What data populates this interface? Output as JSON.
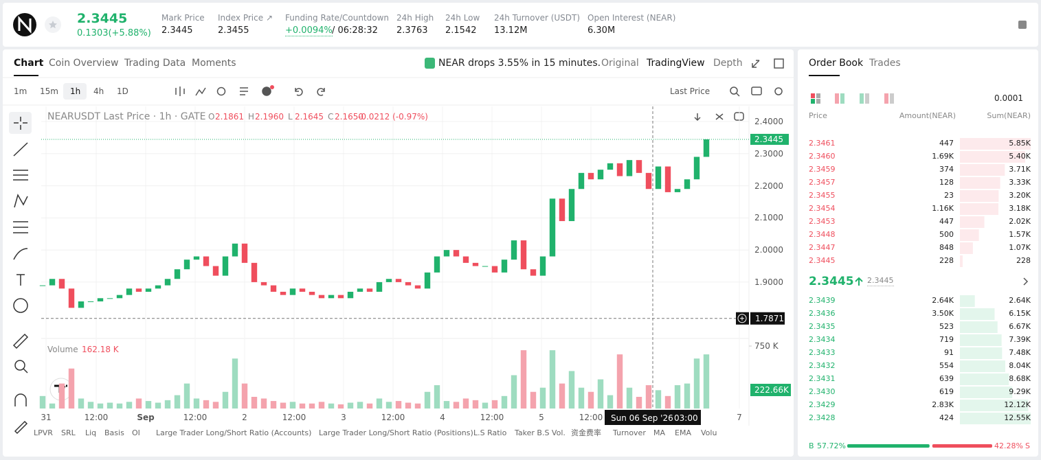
{
  "header": {
    "price": "2.3445",
    "change": "0.1303(+5.88%)",
    "stats": [
      {
        "label": "Mark Price",
        "value": "2.3445"
      },
      {
        "label": "Index Price ↗",
        "value": "2.3455"
      },
      {
        "label": "Funding Rate/Countdown",
        "value": "+0.0094%",
        "extra": "/ 06:28:32"
      },
      {
        "label": "24h High",
        "value": "2.3763"
      },
      {
        "label": "24h Low",
        "value": "2.1542"
      },
      {
        "label": "24h Turnover (USDT)",
        "value": "13.12M"
      },
      {
        "label": "Open Interest (NEAR)",
        "value": "6.30M"
      }
    ]
  },
  "tabs": [
    "Chart",
    "Coin Overview",
    "Trading Data",
    "Moments"
  ],
  "news": "NEAR drops 3.55% in 15 minutes.",
  "view_tabs": [
    "Original",
    "TradingView",
    "Depth"
  ],
  "intervals": [
    "1m",
    "15m",
    "1h",
    "4h",
    "1D"
  ],
  "price_type": "Last Price",
  "legend": {
    "title": "NEARUSDT Last Price · 1h · GATE",
    "ohlc": [
      {
        "key": "O",
        "value": "2.1861"
      },
      {
        "key": "H",
        "value": "2.1960"
      },
      {
        "key": "L",
        "value": "2.1645"
      },
      {
        "key": "C",
        "value": "2.1650"
      }
    ],
    "change": "-0.0212 (-0.97%)"
  },
  "chart_data": {
    "type": "candlestick",
    "values": [
      1.89,
      1.91,
      1.88,
      1.82,
      1.84,
      1.84,
      1.85,
      1.85,
      1.86,
      1.88,
      1.87,
      1.88,
      1.89,
      1.91,
      1.94,
      1.97,
      1.98,
      1.95,
      1.92,
      1.98,
      2.02,
      1.96,
      1.9,
      1.89,
      1.87,
      1.86,
      1.88,
      1.87,
      1.86,
      1.85,
      1.86,
      1.85,
      1.87,
      1.88,
      1.87,
      1.9,
      1.91,
      1.9,
      1.89,
      1.88,
      1.93,
      1.98,
      2.0,
      1.98,
      1.96,
      1.95,
      1.95,
      1.93,
      1.97,
      2.03,
      1.94,
      1.92,
      1.98,
      2.16,
      2.09,
      2.19,
      2.24,
      2.22,
      2.25,
      2.27,
      2.23,
      2.28,
      2.24,
      2.19,
      2.26,
      2.18,
      2.19,
      2.22,
      2.29,
      2.3445
    ],
    "up_color": "#20b26c",
    "down_color": "#ef4e5d",
    "ylim": [
      1.731,
      2.447
    ],
    "yticks": [
      {
        "value": 2.4,
        "label": "2.4000"
      },
      {
        "value": 2.3,
        "label": "2.3000"
      },
      {
        "value": 2.2,
        "label": "2.2000"
      },
      {
        "value": 2.1,
        "label": "2.1000"
      },
      {
        "value": 2.0,
        "label": "2.0000"
      },
      {
        "value": 1.9,
        "label": "1.9000"
      }
    ],
    "last_price": {
      "value": 2.3445,
      "label": "2.3445"
    },
    "crosshair_price": {
      "value": 1.7871,
      "label": "1.7871"
    },
    "x_labels": [
      "31",
      "12:00",
      "Sep",
      "12:00",
      "2",
      "12:00",
      "3",
      "12:00",
      "4",
      "12:00",
      "5",
      "12:00",
      "7"
    ],
    "crosshair_time": [
      "Sun 06 Sep '26",
      "03:00"
    ],
    "grid": true,
    "volume": {
      "name": "Volume",
      "current_label": "162.18 K",
      "values": [
        150,
        60,
        300,
        480,
        120,
        80,
        60,
        70,
        60,
        80,
        120,
        90,
        70,
        100,
        160,
        300,
        120,
        100,
        80,
        200,
        600,
        300,
        140,
        120,
        90,
        70,
        80,
        60,
        60,
        80,
        60,
        50,
        70,
        80,
        60,
        120,
        80,
        90,
        70,
        60,
        200,
        280,
        90,
        80,
        120,
        100,
        70,
        100,
        150,
        400,
        700,
        200,
        250,
        700,
        300,
        450,
        250,
        200,
        350,
        160,
        650,
        250,
        140,
        280,
        220,
        150,
        280,
        300,
        600,
        650
      ],
      "up_color": "#9edcc0",
      "down_color": "#f4a3ad",
      "ylim": [
        0,
        808
      ],
      "yticks": [
        {
          "value": 750,
          "label": "750 K"
        }
      ],
      "last": {
        "value": 222.66,
        "label": "222.66K"
      }
    }
  },
  "indicators": [
    "LPVR",
    "SRL",
    "Liq",
    "Basis",
    "OI",
    "Large Trader Long/Short Ratio (Accounts)",
    "Large Trader Long/Short Ratio (Positions)",
    "L.S Ratio",
    "Taker B.S Vol.",
    "资金费率",
    "Turnover",
    "MA",
    "EMA",
    "Volu"
  ],
  "order_book": {
    "tabs": [
      "Order Book",
      "Trades"
    ],
    "precision": "0.0001",
    "columns": [
      "Price",
      "Amount(NEAR)",
      "Sum(NEAR)"
    ],
    "asks": [
      [
        "2.3461",
        "447",
        "5.85K"
      ],
      [
        "2.3460",
        "1.69K",
        "5.40K"
      ],
      [
        "2.3459",
        "374",
        "3.71K"
      ],
      [
        "2.3457",
        "128",
        "3.33K"
      ],
      [
        "2.3455",
        "23",
        "3.20K"
      ],
      [
        "2.3454",
        "1.16K",
        "3.18K"
      ],
      [
        "2.3453",
        "447",
        "2.02K"
      ],
      [
        "2.3448",
        "500",
        "1.57K"
      ],
      [
        "2.3447",
        "848",
        "1.07K"
      ],
      [
        "2.3445",
        "228",
        "228"
      ]
    ],
    "mid_price": "2.3445",
    "mark_price": "2.3445",
    "bids": [
      [
        "2.3439",
        "2.64K",
        "2.64K"
      ],
      [
        "2.3436",
        "3.50K",
        "6.15K"
      ],
      [
        "2.3435",
        "523",
        "6.67K"
      ],
      [
        "2.3434",
        "719",
        "7.39K"
      ],
      [
        "2.3433",
        "91",
        "7.48K"
      ],
      [
        "2.3432",
        "554",
        "8.04K"
      ],
      [
        "2.3431",
        "639",
        "8.68K"
      ],
      [
        "2.3430",
        "619",
        "9.29K"
      ],
      [
        "2.3429",
        "2.83K",
        "12.12K"
      ],
      [
        "2.3428",
        "424",
        "12.55K"
      ]
    ],
    "buy_tag": "B",
    "sell_tag": "S",
    "buy": {
      "value": 57.72,
      "label": "57.72%"
    },
    "sell": {
      "value": 42.28,
      "label": "42.28%"
    }
  }
}
